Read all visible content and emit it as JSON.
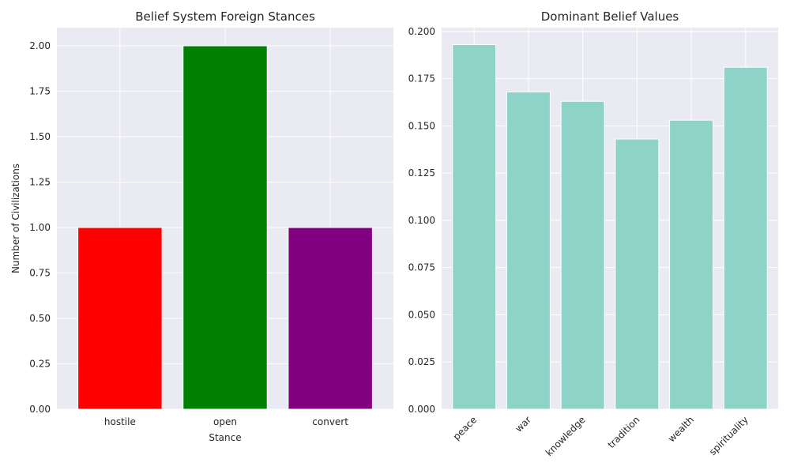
{
  "chart_data": [
    {
      "type": "bar",
      "title": "Belief System Foreign Stances",
      "xlabel": "Stance",
      "ylabel": "Number of Civilizations",
      "categories": [
        "hostile",
        "open",
        "convert"
      ],
      "values": [
        1,
        2,
        1
      ],
      "colors": [
        "#ff0000",
        "#008000",
        "#800080"
      ],
      "ylim": [
        0,
        2.1
      ],
      "yticks": [
        0.0,
        0.25,
        0.5,
        0.75,
        1.0,
        1.25,
        1.5,
        1.75,
        2.0
      ],
      "ytick_labels": [
        "0.00",
        "0.25",
        "0.50",
        "0.75",
        "1.00",
        "1.25",
        "1.50",
        "1.75",
        "2.00"
      ],
      "grid": true
    },
    {
      "type": "bar",
      "title": "Dominant Belief Values",
      "xlabel": "",
      "ylabel": "",
      "categories": [
        "peace",
        "war",
        "knowledge",
        "tradition",
        "wealth",
        "spirituality"
      ],
      "values": [
        0.193,
        0.168,
        0.163,
        0.143,
        0.153,
        0.181
      ],
      "colors": [
        "#8dd3c7",
        "#8dd3c7",
        "#8dd3c7",
        "#8dd3c7",
        "#8dd3c7",
        "#8dd3c7"
      ],
      "ylim": [
        0,
        0.202
      ],
      "yticks": [
        0.0,
        0.025,
        0.05,
        0.075,
        0.1,
        0.125,
        0.15,
        0.175,
        0.2
      ],
      "ytick_labels": [
        "0.000",
        "0.025",
        "0.050",
        "0.075",
        "0.100",
        "0.125",
        "0.150",
        "0.175",
        "0.200"
      ],
      "xtick_rotation": -45,
      "grid": true
    }
  ]
}
